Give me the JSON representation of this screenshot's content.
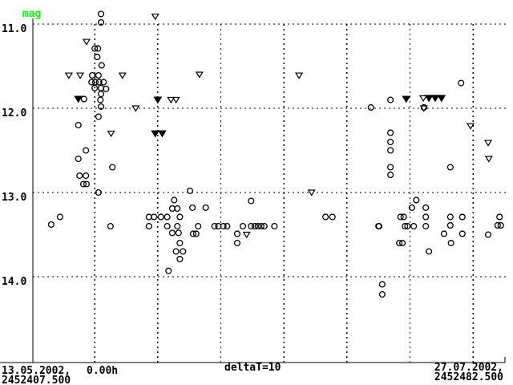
{
  "chart_data": {
    "type": "scatter",
    "title": "",
    "mag_label": "mag",
    "colors": {
      "mag_label": "#00FF00",
      "foreground": "#000000",
      "background": "#FFFFFF"
    },
    "y_axis": {
      "label": "mag",
      "ticks": [
        "11.0",
        "12.0",
        "13.0",
        "14.0"
      ],
      "tick_values": [
        11.0,
        12.0,
        13.0,
        14.0
      ],
      "range": [
        10.85,
        14.3
      ],
      "inverted": true,
      "grid": "dotted"
    },
    "x_axis": {
      "label_left_date": "13.05.2002,",
      "label_left_time": "0.00h",
      "label_left_jd": "2452407.500",
      "label_center": "deltaT=10",
      "label_right_date": "27.07.2002,",
      "label_right_jd": "2452482.500",
      "jd_start": 2452407.5,
      "jd_end": 2452482.5,
      "span_days": 75,
      "gridline_interval_days": 10,
      "grid": "dotted"
    },
    "legend": "none",
    "series": [
      {
        "name": "observations",
        "marker": "open-circle",
        "points_format": [
          "days_since_jd_start",
          "magnitude"
        ],
        "points": [
          [
            11.0,
            10.88
          ],
          [
            11.0,
            10.98
          ],
          [
            10.0,
            11.29
          ],
          [
            10.5,
            11.29
          ],
          [
            10.4,
            11.39
          ],
          [
            11.1,
            11.49
          ],
          [
            9.6,
            11.61
          ],
          [
            10.6,
            11.61
          ],
          [
            9.5,
            11.69
          ],
          [
            10.1,
            11.69
          ],
          [
            10.7,
            11.69
          ],
          [
            11.4,
            11.69
          ],
          [
            10.0,
            11.76
          ],
          [
            11.0,
            11.76
          ],
          [
            11.8,
            11.77
          ],
          [
            11.0,
            11.83
          ],
          [
            8.3,
            11.89
          ],
          [
            10.9,
            11.9
          ],
          [
            11.0,
            11.98
          ],
          [
            10.6,
            12.1
          ],
          [
            7.4,
            12.2
          ],
          [
            8.6,
            12.5
          ],
          [
            7.4,
            12.6
          ],
          [
            12.8,
            12.7
          ],
          [
            7.6,
            12.8
          ],
          [
            8.6,
            12.8
          ],
          [
            8.2,
            12.9
          ],
          [
            8.7,
            12.9
          ],
          [
            10.6,
            13.0
          ],
          [
            4.5,
            13.29
          ],
          [
            3.1,
            13.38
          ],
          [
            12.5,
            13.4
          ],
          [
            25.1,
            12.98
          ],
          [
            22.6,
            13.09
          ],
          [
            22.3,
            13.19
          ],
          [
            23.1,
            13.19
          ],
          [
            25.5,
            13.18
          ],
          [
            27.6,
            13.18
          ],
          [
            18.6,
            13.29
          ],
          [
            19.4,
            13.29
          ],
          [
            20.5,
            13.29
          ],
          [
            21.5,
            13.29
          ],
          [
            23.5,
            13.29
          ],
          [
            18.6,
            13.4
          ],
          [
            21.5,
            13.4
          ],
          [
            23.1,
            13.4
          ],
          [
            26.4,
            13.4
          ],
          [
            29.0,
            13.4
          ],
          [
            29.6,
            13.4
          ],
          [
            30.4,
            13.4
          ],
          [
            31.0,
            13.4
          ],
          [
            33.5,
            13.4
          ],
          [
            34.8,
            13.4
          ],
          [
            35.4,
            13.4
          ],
          [
            35.9,
            13.4
          ],
          [
            36.4,
            13.4
          ],
          [
            36.9,
            13.4
          ],
          [
            38.5,
            13.4
          ],
          [
            22.3,
            13.48
          ],
          [
            23.3,
            13.48
          ],
          [
            25.6,
            13.49
          ],
          [
            26.1,
            13.49
          ],
          [
            32.6,
            13.49
          ],
          [
            32.6,
            13.6
          ],
          [
            23.5,
            13.6
          ],
          [
            22.9,
            13.7
          ],
          [
            24.0,
            13.7
          ],
          [
            23.5,
            13.79
          ],
          [
            21.7,
            13.93
          ],
          [
            34.8,
            13.1
          ],
          [
            46.6,
            13.29
          ],
          [
            47.7,
            13.29
          ],
          [
            55.0,
            13.4
          ],
          [
            53.8,
            11.99
          ],
          [
            56.9,
            11.9
          ],
          [
            62.2,
            11.99
          ],
          [
            68.1,
            11.7
          ],
          [
            56.9,
            12.29
          ],
          [
            56.9,
            12.4
          ],
          [
            56.9,
            12.5
          ],
          [
            56.9,
            12.7
          ],
          [
            56.9,
            12.79
          ],
          [
            66.4,
            12.7
          ],
          [
            61.0,
            13.09
          ],
          [
            60.3,
            13.18
          ],
          [
            62.5,
            13.18
          ],
          [
            58.5,
            13.29
          ],
          [
            59.0,
            13.29
          ],
          [
            62.5,
            13.29
          ],
          [
            66.4,
            13.29
          ],
          [
            68.3,
            13.29
          ],
          [
            74.2,
            13.29
          ],
          [
            55.1,
            13.4
          ],
          [
            59.2,
            13.4
          ],
          [
            59.6,
            13.4
          ],
          [
            60.6,
            13.4
          ],
          [
            62.5,
            13.4
          ],
          [
            66.4,
            13.39
          ],
          [
            73.9,
            13.39
          ],
          [
            74.4,
            13.39
          ],
          [
            65.4,
            13.49
          ],
          [
            68.3,
            13.49
          ],
          [
            72.4,
            13.5
          ],
          [
            66.5,
            13.6
          ],
          [
            58.3,
            13.6
          ],
          [
            58.8,
            13.6
          ],
          [
            63.0,
            13.7
          ],
          [
            55.6,
            14.09
          ],
          [
            55.6,
            14.21
          ]
        ]
      },
      {
        "name": "open-triangles",
        "marker": "open-triangle-down",
        "points_format": [
          "days_since_jd_start",
          "magnitude"
        ],
        "points": [
          [
            19.6,
            10.91
          ],
          [
            8.7,
            11.21
          ],
          [
            5.9,
            11.61
          ],
          [
            7.7,
            11.61
          ],
          [
            14.4,
            11.61
          ],
          [
            26.6,
            11.6
          ],
          [
            42.4,
            11.61
          ],
          [
            22.1,
            11.9
          ],
          [
            22.9,
            11.9
          ],
          [
            16.5,
            12.0
          ],
          [
            12.6,
            12.3
          ],
          [
            44.4,
            13.0
          ],
          [
            34.1,
            13.5
          ],
          [
            62.1,
            11.88
          ],
          [
            62.2,
            12.0
          ],
          [
            69.6,
            12.21
          ],
          [
            72.4,
            12.41
          ],
          [
            72.5,
            12.6
          ]
        ]
      },
      {
        "name": "filled-triangles",
        "marker": "filled-triangle-down",
        "points_format": [
          "days_since_jd_start",
          "magnitude"
        ],
        "points": [
          [
            7.4,
            11.89
          ],
          [
            20.0,
            11.9
          ],
          [
            19.6,
            12.3
          ],
          [
            20.7,
            12.3
          ],
          [
            59.4,
            11.89
          ],
          [
            63.0,
            11.88
          ],
          [
            64.0,
            11.88
          ],
          [
            65.0,
            11.88
          ]
        ]
      }
    ]
  }
}
